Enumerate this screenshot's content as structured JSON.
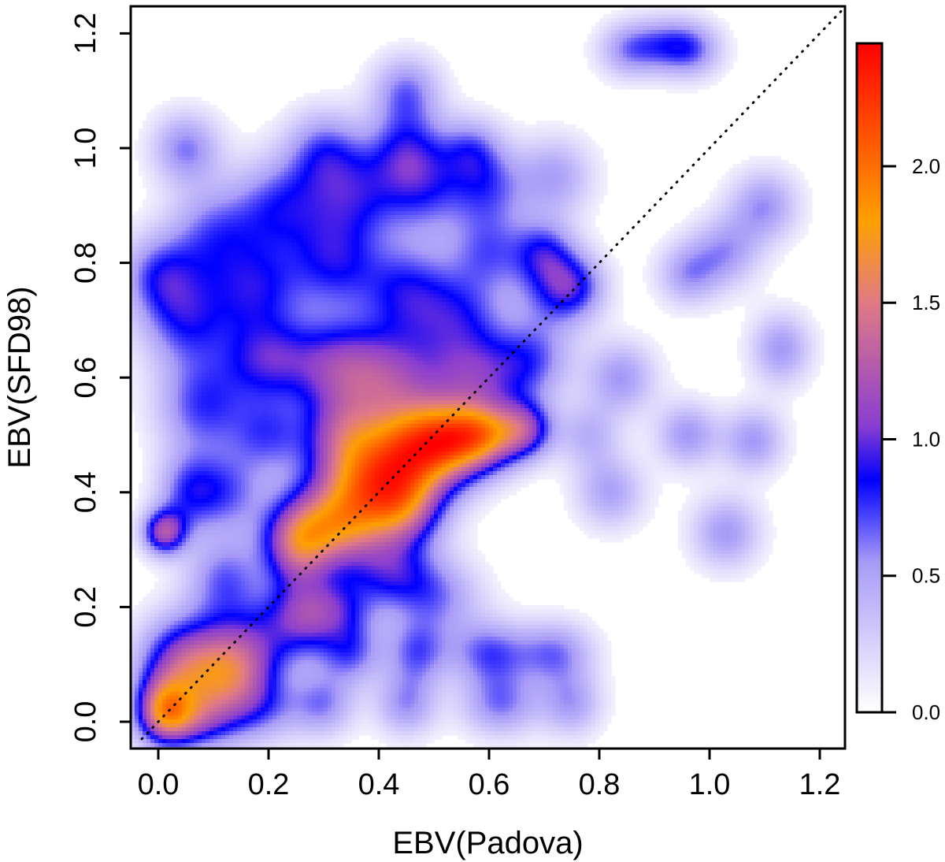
{
  "chart_data": {
    "type": "heatmap",
    "xlabel": "EBV(Padova)",
    "ylabel": "EBV(SFD98)",
    "xlim": [
      -0.05,
      1.25
    ],
    "ylim": [
      -0.05,
      1.25
    ],
    "x_ticks": [
      "0.0",
      "0.2",
      "0.4",
      "0.6",
      "0.8",
      "1.0",
      "1.2"
    ],
    "x_tick_values": [
      0.0,
      0.2,
      0.4,
      0.6,
      0.8,
      1.0,
      1.2
    ],
    "y_ticks": [
      "0.0",
      "0.2",
      "0.4",
      "0.6",
      "0.8",
      "1.0",
      "1.2"
    ],
    "y_tick_values": [
      0.0,
      0.2,
      0.4,
      0.6,
      0.8,
      1.0,
      1.2
    ],
    "colorbar": {
      "range": [
        0.0,
        2.45
      ],
      "ticks": [
        "0.0",
        "0.5",
        "1.0",
        "1.5",
        "2.0"
      ],
      "tick_values": [
        0.0,
        0.5,
        1.0,
        1.5,
        2.0
      ],
      "colors": [
        {
          "value": 0.0,
          "color": "#ffffff"
        },
        {
          "value": 0.55,
          "color": "#a89bf7"
        },
        {
          "value": 0.85,
          "color": "#0000ff"
        },
        {
          "value": 1.05,
          "color": "#8a3ed0"
        },
        {
          "value": 1.5,
          "color": "#e07a86"
        },
        {
          "value": 1.8,
          "color": "#ffa000"
        },
        {
          "value": 2.45,
          "color": "#ff0000"
        }
      ]
    },
    "reference_line": {
      "style": "dotted",
      "slope": 1,
      "intercept": 0
    },
    "grid": false,
    "density_peaks": [
      {
        "x": 0.01,
        "y": 0.02,
        "density": 2.45
      },
      {
        "x": 0.1,
        "y": 0.1,
        "density": 1.85
      },
      {
        "x": 0.3,
        "y": 0.35,
        "density": 1.4
      },
      {
        "x": 0.45,
        "y": 0.48,
        "density": 1.45
      },
      {
        "x": 0.6,
        "y": 0.52,
        "density": 1.1
      },
      {
        "x": 0.25,
        "y": 0.22,
        "density": 1.0
      },
      {
        "x": 0.01,
        "y": 0.33,
        "density": 1.0
      },
      {
        "x": 0.95,
        "y": 1.18,
        "density": 0.55
      },
      {
        "x": 0.45,
        "y": 1.1,
        "density": 0.6
      },
      {
        "x": 0.05,
        "y": 1.0,
        "density": 0.6
      },
      {
        "x": 1.1,
        "y": 0.9,
        "density": 0.55
      },
      {
        "x": 1.13,
        "y": 0.65,
        "density": 0.55
      },
      {
        "x": 0.85,
        "y": 0.6,
        "density": 0.55
      },
      {
        "x": 0.97,
        "y": 0.5,
        "density": 0.55
      },
      {
        "x": 1.03,
        "y": 0.33,
        "density": 0.55
      },
      {
        "x": 0.82,
        "y": 0.4,
        "density": 0.5
      },
      {
        "x": 0.6,
        "y": 0.1,
        "density": 0.6
      }
    ]
  }
}
